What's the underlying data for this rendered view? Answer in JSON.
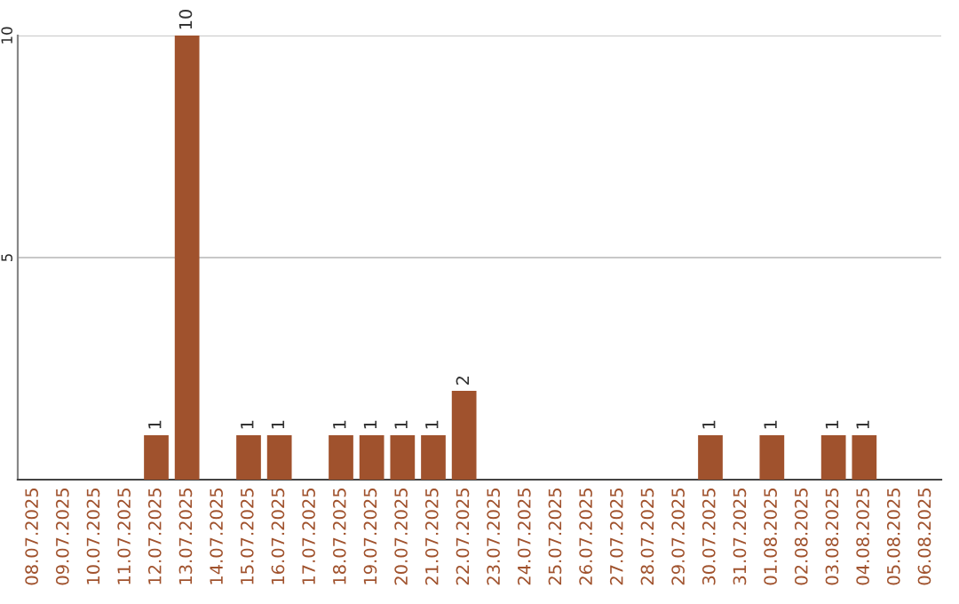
{
  "chart_data": {
    "type": "bar",
    "categories": [
      "08.07.2025",
      "09.07.2025",
      "10.07.2025",
      "11.07.2025",
      "12.07.2025",
      "13.07.2025",
      "14.07.2025",
      "15.07.2025",
      "16.07.2025",
      "17.07.2025",
      "18.07.2025",
      "19.07.2025",
      "20.07.2025",
      "21.07.2025",
      "22.07.2025",
      "23.07.2025",
      "24.07.2025",
      "25.07.2025",
      "26.07.2025",
      "27.07.2025",
      "28.07.2025",
      "29.07.2025",
      "30.07.2025",
      "31.07.2025",
      "01.08.2025",
      "02.08.2025",
      "03.08.2025",
      "04.08.2025",
      "05.08.2025",
      "06.08.2025"
    ],
    "values": [
      0,
      0,
      0,
      0,
      1,
      10,
      0,
      1,
      1,
      0,
      1,
      1,
      1,
      1,
      2,
      0,
      0,
      0,
      0,
      0,
      0,
      0,
      1,
      0,
      1,
      0,
      1,
      1,
      0,
      0
    ],
    "value_labels": [
      null,
      null,
      null,
      null,
      "1",
      "10",
      null,
      "1",
      "1",
      null,
      "1",
      "1",
      "1",
      "1",
      "2",
      null,
      null,
      null,
      null,
      null,
      null,
      null,
      "1",
      null,
      "1",
      null,
      "1",
      "1",
      null,
      null
    ],
    "color": "#a0522d",
    "ylim": [
      0,
      10
    ],
    "yticks": [
      5,
      10
    ],
    "grid": "y",
    "legend": false
  }
}
